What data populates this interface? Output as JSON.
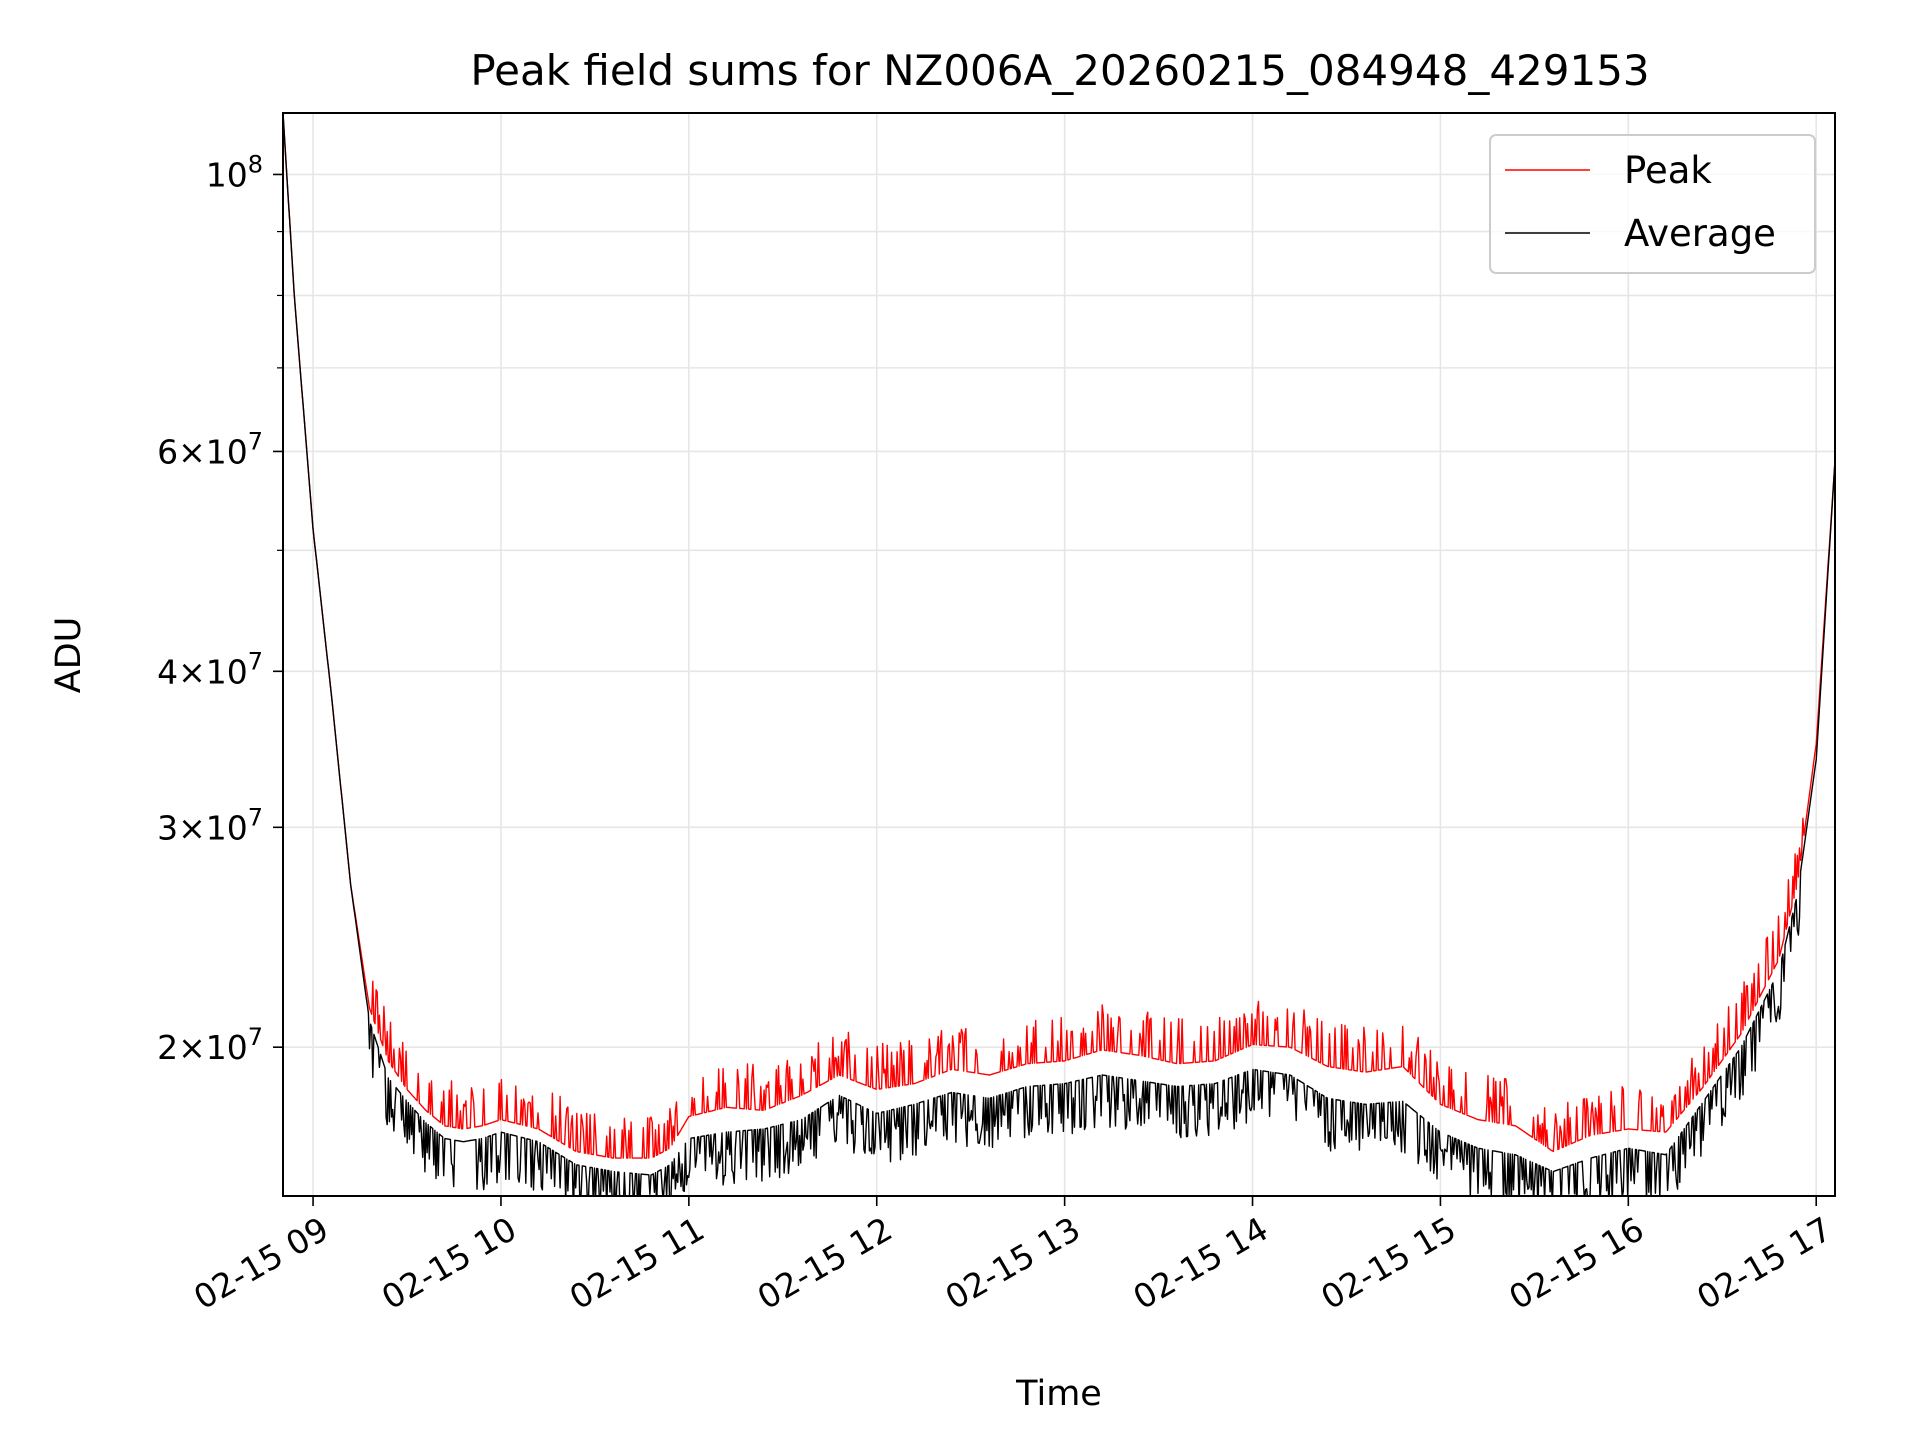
{
  "chart_data": {
    "type": "line",
    "title": "Peak field sums for NZ006A_20260215_084948_429153",
    "xlabel": "Time",
    "ylabel": "ADU",
    "yscale": "log",
    "xlim": [
      8.84,
      17.1
    ],
    "ylim": [
      15200000,
      112000000
    ],
    "grid": true,
    "legend_position": "top-right",
    "x_ticks": [
      {
        "value": 9,
        "label": "02-15 09"
      },
      {
        "value": 10,
        "label": "02-15 10"
      },
      {
        "value": 11,
        "label": "02-15 11"
      },
      {
        "value": 12,
        "label": "02-15 12"
      },
      {
        "value": 13,
        "label": "02-15 13"
      },
      {
        "value": 14,
        "label": "02-15 14"
      },
      {
        "value": 15,
        "label": "02-15 15"
      },
      {
        "value": 16,
        "label": "02-15 16"
      },
      {
        "value": 17,
        "label": "02-15 17"
      }
    ],
    "y_ticks": [
      {
        "value": 100000000,
        "base": "10",
        "exp": "8",
        "mant": ""
      },
      {
        "value": 60000000,
        "base": "10",
        "exp": "7",
        "mant": "6"
      },
      {
        "value": 40000000,
        "base": "10",
        "exp": "7",
        "mant": "4"
      },
      {
        "value": 30000000,
        "base": "10",
        "exp": "7",
        "mant": "3"
      },
      {
        "value": 20000000,
        "base": "10",
        "exp": "7",
        "mant": "2"
      }
    ],
    "y_minor_grid": [
      70000000,
      80000000,
      90000000,
      50000000
    ],
    "x_hours": [
      8.84,
      8.9,
      9.0,
      9.1,
      9.2,
      9.3,
      9.4,
      9.5,
      9.6,
      9.7,
      9.8,
      9.9,
      10.0,
      10.2,
      10.4,
      10.6,
      10.8,
      10.9,
      11.0,
      11.2,
      11.4,
      11.6,
      11.8,
      12.0,
      12.2,
      12.4,
      12.6,
      12.8,
      13.0,
      13.2,
      13.4,
      13.6,
      13.8,
      14.0,
      14.2,
      14.4,
      14.6,
      14.8,
      15.0,
      15.2,
      15.4,
      15.6,
      15.8,
      16.0,
      16.2,
      16.4,
      16.6,
      16.8,
      16.9,
      17.0,
      17.1
    ],
    "series": [
      {
        "name": "Peak",
        "color": "#ff0000",
        "values": [
          112000000,
          80000000,
          52000000,
          38000000,
          27000000,
          21500000,
          19500000,
          18500000,
          17800000,
          17300000,
          17200000,
          17300000,
          17500000,
          17200000,
          16500000,
          16300000,
          16300000,
          16600000,
          17600000,
          17900000,
          17800000,
          18300000,
          19000000,
          18500000,
          18700000,
          19200000,
          19000000,
          19400000,
          19500000,
          19900000,
          19700000,
          19400000,
          19500000,
          20100000,
          20000000,
          19300000,
          19100000,
          19300000,
          18000000,
          17500000,
          17300000,
          16500000,
          17000000,
          17200000,
          17100000,
          18600000,
          20500000,
          23500000,
          27000000,
          35000000,
          59000000
        ]
      },
      {
        "name": "Average",
        "color": "#000000",
        "values": [
          112000000,
          80000000,
          52000000,
          38000000,
          27000000,
          21000000,
          18900000,
          18100000,
          17400000,
          16900000,
          16800000,
          16900000,
          17100000,
          16800000,
          16100000,
          15900000,
          15800000,
          16100000,
          16900000,
          17100000,
          17200000,
          17500000,
          18300000,
          17700000,
          18000000,
          18400000,
          18200000,
          18600000,
          18700000,
          19000000,
          18800000,
          18600000,
          18700000,
          19200000,
          19000000,
          18200000,
          18000000,
          18100000,
          17100000,
          16600000,
          16400000,
          15900000,
          16300000,
          16600000,
          16400000,
          18100000,
          20000000,
          23000000,
          26500000,
          34000000,
          59000000
        ]
      }
    ]
  }
}
